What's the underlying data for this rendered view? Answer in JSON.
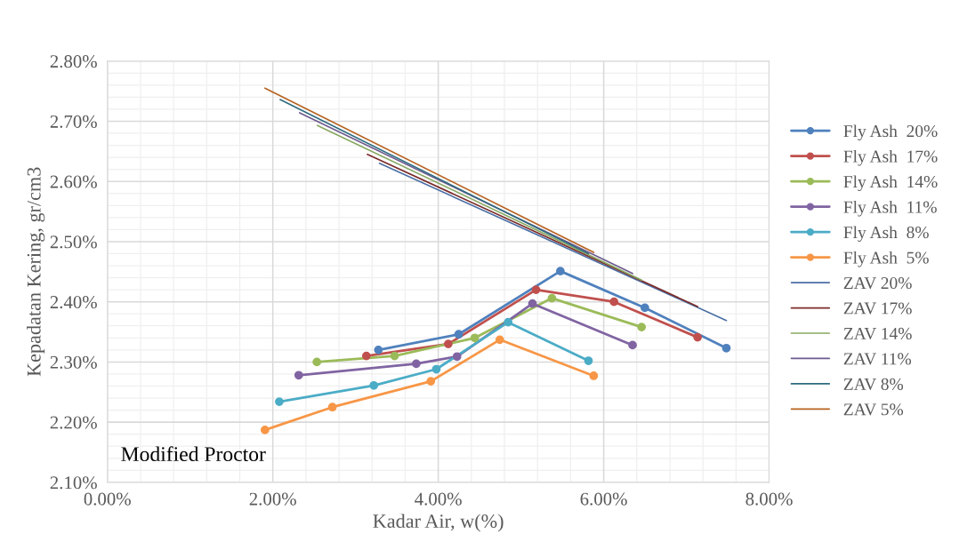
{
  "chart_data": {
    "type": "line",
    "xlabel": "Kadar Air, w(%)",
    "ylabel": "Kepadatan Kering, gr/cm3",
    "xlim": [
      0,
      8
    ],
    "xticks": [
      {
        "value": 0,
        "label": "0.00%"
      },
      {
        "value": 2,
        "label": "2.00%"
      },
      {
        "value": 4,
        "label": "4.00%"
      },
      {
        "value": 6,
        "label": "6.00%"
      },
      {
        "value": 8,
        "label": "8.00%"
      }
    ],
    "ylim": [
      2.1,
      2.8
    ],
    "yticks": [
      {
        "value": 2.1,
        "label": "2.10%"
      },
      {
        "value": 2.2,
        "label": "2.20%"
      },
      {
        "value": 2.3,
        "label": "2.30%"
      },
      {
        "value": 2.4,
        "label": "2.40%"
      },
      {
        "value": 2.5,
        "label": "2.50%"
      },
      {
        "value": 2.6,
        "label": "2.60%"
      },
      {
        "value": 2.7,
        "label": "2.70%"
      },
      {
        "value": 2.8,
        "label": "2.80%"
      }
    ],
    "grid": true,
    "legend": "right",
    "annotations": [
      "Modified Proctor"
    ],
    "series": [
      {
        "name": "Fly Ash  20%",
        "color": "#4f81bd",
        "marker": "circle",
        "x": [
          3.276,
          4.247,
          5.476,
          6.498,
          7.483
        ],
        "values": [
          2.32,
          2.346,
          2.451,
          2.39,
          2.323
        ]
      },
      {
        "name": "Fly Ash  17%",
        "color": "#c0504d",
        "marker": "circle",
        "x": [
          3.131,
          4.121,
          5.182,
          6.125,
          7.135
        ],
        "values": [
          2.31,
          2.33,
          2.42,
          2.4,
          2.341
        ]
      },
      {
        "name": "Fly Ash  14%",
        "color": "#9bbb59",
        "marker": "circle",
        "x": [
          2.532,
          3.472,
          4.442,
          5.374,
          6.458
        ],
        "values": [
          2.3,
          2.31,
          2.34,
          2.406,
          2.358
        ]
      },
      {
        "name": "Fly Ash  11%",
        "color": "#8064a2",
        "marker": "circle",
        "x": [
          2.313,
          3.734,
          4.227,
          5.139,
          6.349
        ],
        "values": [
          2.278,
          2.297,
          2.309,
          2.397,
          2.328
        ]
      },
      {
        "name": "Fly Ash  8%",
        "color": "#4bacc6",
        "marker": "circle",
        "x": [
          2.078,
          3.221,
          3.977,
          4.845,
          5.816
        ],
        "values": [
          2.234,
          2.261,
          2.288,
          2.366,
          2.302
        ]
      },
      {
        "name": "Fly Ash  5%",
        "color": "#f79646",
        "marker": "circle",
        "x": [
          1.905,
          2.72,
          3.91,
          4.744,
          5.879
        ],
        "values": [
          2.187,
          2.225,
          2.268,
          2.337,
          2.277
        ]
      },
      {
        "name": "ZAV 20%",
        "color": "#4a6fa5",
        "marker": "none",
        "x": [
          3.289,
          7.483
        ],
        "values": [
          2.63,
          2.369
        ]
      },
      {
        "name": "ZAV 17%",
        "color": "#7b2c2a",
        "marker": "none",
        "x": [
          3.144,
          7.135
        ],
        "values": [
          2.645,
          2.392
        ]
      },
      {
        "name": "ZAV 14%",
        "color": "#88a862",
        "marker": "none",
        "x": [
          2.539,
          6.458
        ],
        "values": [
          2.693,
          2.436
        ]
      },
      {
        "name": "ZAV 11%",
        "color": "#6d5a8e",
        "marker": "none",
        "x": [
          2.324,
          6.349
        ],
        "values": [
          2.714,
          2.447
        ]
      },
      {
        "name": "ZAV 8%",
        "color": "#2e6b80",
        "marker": "none",
        "x": [
          2.088,
          5.816
        ],
        "values": [
          2.736,
          2.48
        ]
      },
      {
        "name": "ZAV 5%",
        "color": "#b7621f",
        "marker": "none",
        "x": [
          1.905,
          5.879
        ],
        "values": [
          2.755,
          2.482
        ]
      }
    ]
  }
}
